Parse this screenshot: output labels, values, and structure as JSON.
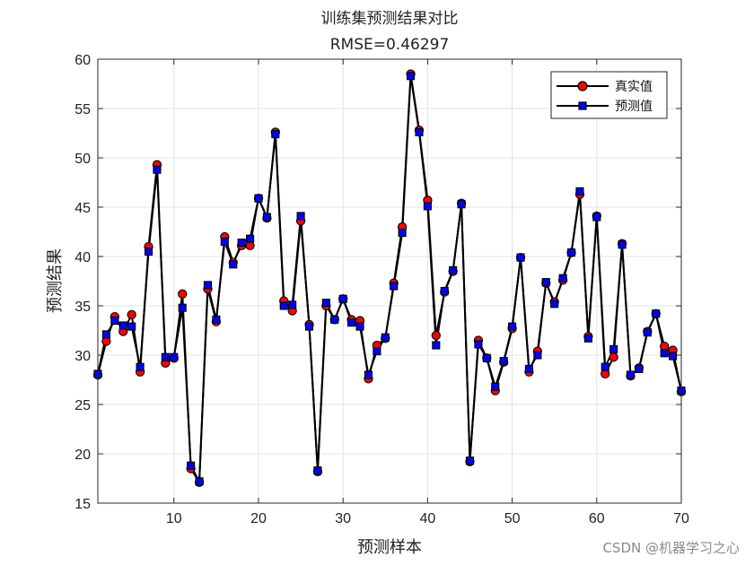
{
  "watermark": "CSDN @机器学习之心",
  "chart_data": {
    "type": "line",
    "title": "训练集预测结果对比",
    "subtitle": "RMSE=0.46297",
    "xlabel": "预测样本",
    "ylabel": "预测结果",
    "xlim": [
      1,
      70
    ],
    "ylim": [
      15,
      60
    ],
    "xticks": [
      10,
      20,
      30,
      40,
      50,
      60,
      70
    ],
    "yticks": [
      15,
      20,
      25,
      30,
      35,
      40,
      45,
      50,
      55,
      60
    ],
    "grid": true,
    "legend_position": "top-right",
    "x": [
      1,
      2,
      3,
      4,
      5,
      6,
      7,
      8,
      9,
      10,
      11,
      12,
      13,
      14,
      15,
      16,
      17,
      18,
      19,
      20,
      21,
      22,
      23,
      24,
      25,
      26,
      27,
      28,
      29,
      30,
      31,
      32,
      33,
      34,
      35,
      36,
      37,
      38,
      39,
      40,
      41,
      42,
      43,
      44,
      45,
      46,
      47,
      48,
      49,
      50,
      51,
      52,
      53,
      54,
      55,
      56,
      57,
      58,
      59,
      60,
      61,
      62,
      63,
      64,
      65,
      66,
      67,
      68,
      69,
      70
    ],
    "series": [
      {
        "name": "真实值",
        "color": "#ff0000",
        "marker": "circle",
        "values": [
          28.0,
          31.4,
          33.9,
          32.4,
          34.1,
          28.3,
          41.0,
          49.3,
          29.2,
          29.7,
          36.2,
          18.5,
          17.1,
          36.7,
          33.4,
          42.0,
          39.4,
          41.1,
          41.1,
          45.9,
          43.9,
          52.6,
          35.5,
          34.5,
          43.6,
          33.1,
          18.2,
          35.0,
          33.6,
          35.7,
          33.6,
          33.5,
          27.6,
          31.0,
          31.7,
          37.3,
          43.0,
          58.5,
          52.8,
          45.7,
          32.0,
          36.4,
          38.5,
          45.4,
          19.2,
          31.5,
          29.7,
          26.4,
          29.3,
          32.7,
          39.9,
          28.3,
          30.4,
          37.3,
          35.4,
          37.6,
          40.4,
          46.3,
          31.9,
          44.1,
          28.1,
          29.8,
          41.3,
          27.9,
          28.7,
          32.4,
          34.2,
          30.9,
          30.5,
          26.3
        ]
      },
      {
        "name": "预测值",
        "color": "#0000ff",
        "marker": "square",
        "values": [
          28.1,
          32.1,
          33.5,
          33.0,
          32.9,
          28.8,
          40.5,
          48.8,
          29.8,
          29.8,
          34.8,
          18.8,
          17.2,
          37.1,
          33.6,
          41.5,
          39.2,
          41.4,
          41.8,
          45.9,
          44.0,
          52.4,
          35.0,
          35.1,
          44.1,
          32.9,
          18.3,
          35.3,
          33.6,
          35.7,
          33.3,
          32.9,
          28.0,
          30.4,
          31.8,
          37.0,
          42.4,
          58.3,
          52.6,
          45.1,
          31.0,
          36.5,
          38.6,
          45.3,
          19.3,
          31.1,
          29.7,
          26.8,
          29.4,
          32.9,
          39.9,
          28.6,
          30.0,
          37.4,
          35.2,
          37.8,
          40.4,
          46.6,
          31.7,
          44.0,
          28.8,
          30.6,
          41.2,
          28.0,
          28.6,
          32.3,
          34.2,
          30.2,
          29.9,
          26.4
        ]
      }
    ]
  }
}
